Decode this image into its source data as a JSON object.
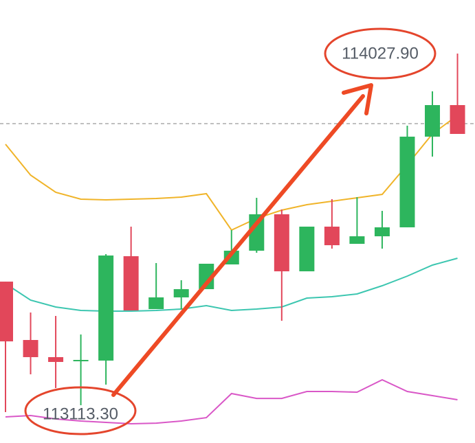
{
  "chart_data": {
    "type": "candlestick",
    "ylim": [
      113015.1,
      114167.2
    ],
    "up_color": "#2db55d",
    "down_color": "#e2475a",
    "open": [
      113434.8,
      113283.0,
      113238.4,
      113227.6,
      113229.4,
      113500.9,
      113363.4,
      113393.8,
      113415.2,
      113479.5,
      113515.2,
      113609.9,
      113461.6,
      113577.8,
      113533.1,
      113552.7,
      113576.0,
      113811.8,
      113893.9
    ],
    "high": [
      113434.8,
      113354.5,
      113345.5,
      113297.3,
      113506.3,
      113577.8,
      113483.1,
      113438.4,
      113481.3,
      113568.8,
      113652.8,
      113622.4,
      113577.8,
      113649.2,
      113654.6,
      113618.8,
      113840.3,
      113929.7,
      114027.9
    ],
    "low": [
      113095.4,
      113193.7,
      113158.0,
      113113.3,
      113166.9,
      113359.8,
      113363.4,
      113363.4,
      113415.2,
      113479.5,
      113509.9,
      113333.0,
      113461.6,
      113520.6,
      113533.1,
      113520.6,
      113576.0,
      113760.0,
      113818.9
    ],
    "close": [
      113279.4,
      113238.4,
      113225.9,
      113231.2,
      113502.7,
      113359.8,
      113393.8,
      113415.2,
      113481.3,
      113515.2,
      113609.9,
      113461.6,
      113577.8,
      113529.5,
      113552.7,
      113576.0,
      113811.8,
      113893.9,
      113818.9
    ],
    "series": [
      {
        "color": "#f0b429",
        "values": [
          113792.1,
          113711.7,
          113667.0,
          113649.2,
          113647.4,
          113649.2,
          113651.0,
          113654.5,
          113663.5,
          113568.8,
          113599.2,
          113620.6,
          113634.9,
          113643.8,
          113652.7,
          113661.7,
          113738.5,
          113818.9,
          113867.1
        ]
      },
      {
        "color": "#3cc6b0",
        "values": [
          113429.5,
          113386.6,
          113368.7,
          113359.8,
          113358.0,
          113358.0,
          113359.8,
          113363.4,
          113372.3,
          113359.8,
          113363.4,
          113368.7,
          113391.9,
          113395.5,
          113402.7,
          113424.1,
          113449.1,
          113477.7,
          113495.6
        ]
      },
      {
        "color": "#d957c7",
        "values": [
          113082.9,
          113086.5,
          113077.6,
          113072.2,
          113068.6,
          113065.1,
          113066.8,
          113072.2,
          113081.1,
          113143.7,
          113131.1,
          113131.1,
          113149.0,
          113149.0,
          113147.2,
          113179.4,
          113149.0,
          113138.3,
          113127.6
        ]
      }
    ],
    "price_line": 113845.7,
    "annotations": [
      {
        "text": "114027.90"
      },
      {
        "text": "113113.30"
      }
    ]
  }
}
